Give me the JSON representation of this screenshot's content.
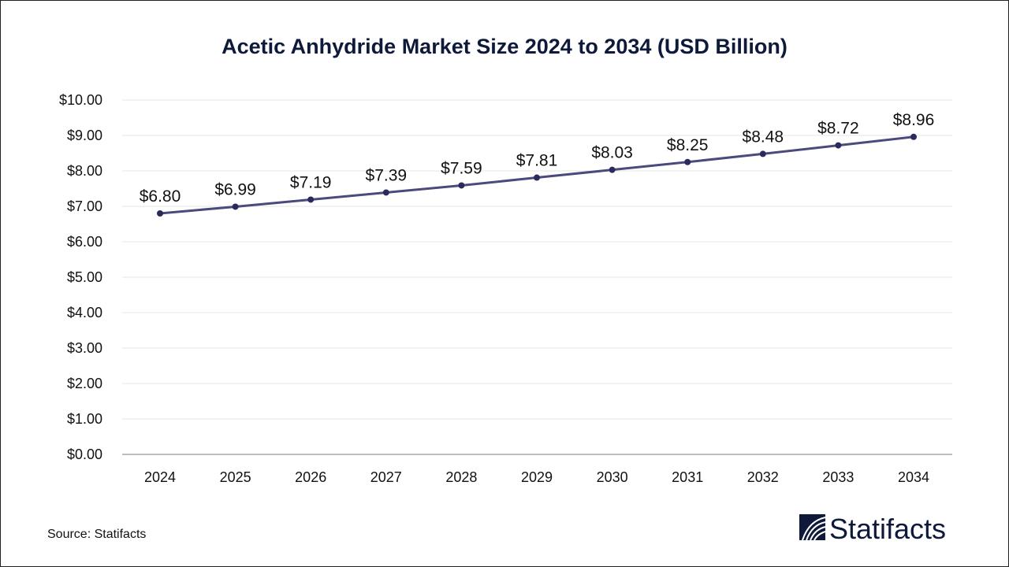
{
  "chart_data": {
    "type": "line",
    "title": "Acetic Anhydride Market Size 2024 to 2034 (USD Billion)",
    "xlabel": "",
    "ylabel": "",
    "categories": [
      "2024",
      "2025",
      "2026",
      "2027",
      "2028",
      "2029",
      "2030",
      "2031",
      "2032",
      "2033",
      "2034"
    ],
    "values": [
      6.8,
      6.99,
      7.19,
      7.39,
      7.59,
      7.81,
      8.03,
      8.25,
      8.48,
      8.72,
      8.96
    ],
    "data_labels": [
      "$6.80",
      "$6.99",
      "$7.19",
      "$7.39",
      "$7.59",
      "$7.81",
      "$8.03",
      "$8.25",
      "$8.48",
      "$8.72",
      "$8.96"
    ],
    "yticks": [
      0,
      1,
      2,
      3,
      4,
      5,
      6,
      7,
      8,
      9,
      10
    ],
    "ytick_labels": [
      "$0.00",
      "$1.00",
      "$2.00",
      "$3.00",
      "$4.00",
      "$5.00",
      "$6.00",
      "$7.00",
      "$8.00",
      "$9.00",
      "$10.00"
    ],
    "ylim": [
      0,
      10
    ],
    "grid": true,
    "legend": "none",
    "colors": {
      "line": "#4b4a7c",
      "marker": "#2a2a5c",
      "grid": "#e6e6e6",
      "axis": "#bdbdbd",
      "title": "#0f1a3a"
    }
  },
  "footer": {
    "source": "Source: Statifacts",
    "brand": "Statifacts"
  }
}
